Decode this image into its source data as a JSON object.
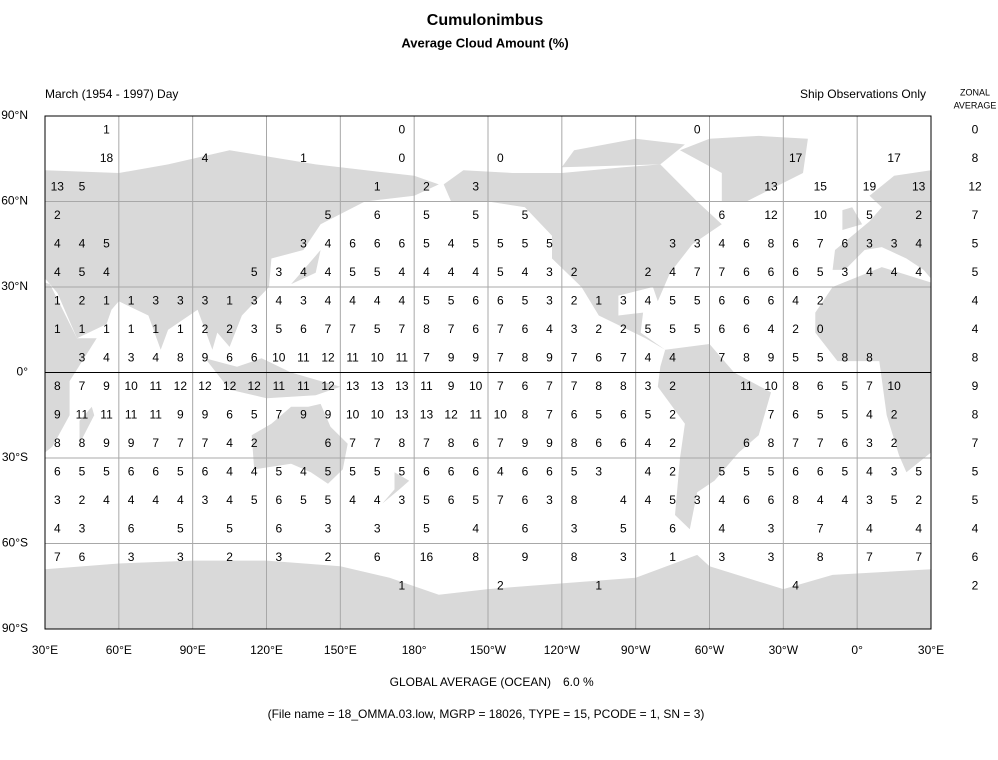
{
  "title": "Cumulonimbus",
  "subtitle": "Average Cloud Amount (%)",
  "period": "March (1954 - 1997) Day",
  "source": "Ship Observations Only",
  "zonal_header": [
    "ZONAL",
    "AVERAGE"
  ],
  "lat_labels": [
    "90°N",
    "60°N",
    "30°N",
    "0°",
    "30°S",
    "60°S",
    "90°S"
  ],
  "lon_labels": [
    "30°E",
    "60°E",
    "90°E",
    "120°E",
    "150°E",
    "180°",
    "150°W",
    "120°W",
    "90°W",
    "60°W",
    "30°W",
    "0°",
    "30°E"
  ],
  "grid": [
    [
      null,
      null,
      1,
      null,
      null,
      null,
      null,
      null,
      null,
      null,
      null,
      null,
      null,
      null,
      0,
      null,
      null,
      null,
      null,
      null,
      null,
      null,
      null,
      null,
      null,
      null,
      0,
      null,
      null,
      null,
      null,
      null,
      null,
      null,
      null,
      null
    ],
    [
      null,
      null,
      18,
      null,
      null,
      null,
      4,
      null,
      null,
      null,
      1,
      null,
      null,
      null,
      0,
      null,
      null,
      null,
      0,
      null,
      null,
      null,
      null,
      null,
      null,
      null,
      null,
      null,
      null,
      null,
      17,
      null,
      null,
      null,
      17,
      null
    ],
    [
      13,
      5,
      null,
      null,
      null,
      null,
      null,
      null,
      null,
      null,
      null,
      null,
      null,
      1,
      null,
      2,
      null,
      3,
      null,
      null,
      null,
      null,
      null,
      null,
      null,
      null,
      null,
      null,
      null,
      13,
      null,
      15,
      null,
      19,
      null,
      13
    ],
    [
      2,
      null,
      null,
      null,
      null,
      null,
      null,
      null,
      null,
      null,
      null,
      5,
      null,
      6,
      null,
      5,
      null,
      5,
      null,
      5,
      null,
      null,
      null,
      null,
      null,
      null,
      null,
      6,
      null,
      12,
      null,
      10,
      null,
      5,
      null,
      2
    ],
    [
      4,
      4,
      5,
      null,
      null,
      null,
      null,
      null,
      null,
      null,
      3,
      4,
      6,
      6,
      6,
      5,
      4,
      5,
      5,
      5,
      5,
      null,
      null,
      null,
      null,
      3,
      3,
      4,
      6,
      8,
      6,
      7,
      6,
      3,
      3,
      4
    ],
    [
      4,
      5,
      4,
      null,
      null,
      null,
      null,
      null,
      5,
      3,
      4,
      4,
      5,
      5,
      4,
      4,
      4,
      4,
      5,
      4,
      3,
      2,
      null,
      null,
      2,
      4,
      7,
      7,
      6,
      6,
      6,
      5,
      3,
      4,
      4,
      4
    ],
    [
      1,
      2,
      1,
      1,
      3,
      3,
      3,
      1,
      3,
      4,
      3,
      4,
      4,
      4,
      4,
      5,
      5,
      6,
      6,
      5,
      3,
      2,
      1,
      3,
      4,
      5,
      5,
      6,
      6,
      6,
      4,
      2,
      null,
      null,
      null,
      null
    ],
    [
      1,
      1,
      1,
      1,
      1,
      1,
      2,
      2,
      3,
      5,
      6,
      7,
      7,
      5,
      7,
      8,
      7,
      6,
      7,
      6,
      4,
      3,
      2,
      2,
      5,
      5,
      5,
      6,
      6,
      4,
      2,
      0,
      null,
      null,
      null,
      null
    ],
    [
      null,
      3,
      4,
      3,
      4,
      8,
      9,
      6,
      6,
      10,
      11,
      12,
      11,
      10,
      11,
      7,
      9,
      9,
      7,
      8,
      9,
      7,
      6,
      7,
      4,
      4,
      null,
      7,
      8,
      9,
      5,
      5,
      8,
      8,
      null,
      null
    ],
    [
      8,
      7,
      9,
      10,
      11,
      12,
      12,
      12,
      12,
      11,
      11,
      12,
      13,
      13,
      13,
      11,
      9,
      10,
      7,
      6,
      7,
      7,
      8,
      8,
      3,
      2,
      null,
      null,
      11,
      10,
      8,
      6,
      5,
      7,
      10,
      null
    ],
    [
      9,
      11,
      11,
      11,
      11,
      9,
      9,
      6,
      5,
      7,
      9,
      9,
      10,
      10,
      13,
      13,
      12,
      11,
      10,
      8,
      7,
      6,
      5,
      6,
      5,
      2,
      null,
      null,
      null,
      7,
      6,
      5,
      5,
      4,
      2,
      null
    ],
    [
      8,
      8,
      9,
      9,
      7,
      7,
      7,
      4,
      2,
      null,
      null,
      6,
      7,
      7,
      8,
      7,
      8,
      6,
      7,
      9,
      9,
      8,
      6,
      6,
      4,
      2,
      null,
      null,
      6,
      8,
      7,
      7,
      6,
      3,
      2,
      null
    ],
    [
      6,
      5,
      5,
      6,
      6,
      5,
      6,
      4,
      4,
      5,
      4,
      5,
      5,
      5,
      5,
      6,
      6,
      6,
      4,
      6,
      6,
      5,
      3,
      null,
      4,
      2,
      null,
      5,
      5,
      5,
      6,
      6,
      5,
      4,
      3,
      5
    ],
    [
      3,
      2,
      4,
      4,
      4,
      4,
      3,
      4,
      5,
      6,
      5,
      5,
      4,
      4,
      3,
      5,
      6,
      5,
      7,
      6,
      3,
      8,
      null,
      4,
      4,
      5,
      3,
      4,
      6,
      6,
      8,
      4,
      4,
      3,
      5,
      2
    ],
    [
      4,
      3,
      null,
      6,
      null,
      5,
      null,
      5,
      null,
      6,
      null,
      3,
      null,
      3,
      null,
      5,
      null,
      4,
      null,
      6,
      null,
      3,
      null,
      5,
      null,
      6,
      null,
      4,
      null,
      3,
      null,
      7,
      null,
      4,
      null,
      4
    ],
    [
      7,
      6,
      null,
      3,
      null,
      3,
      null,
      2,
      null,
      3,
      null,
      2,
      null,
      6,
      null,
      16,
      null,
      8,
      null,
      9,
      null,
      8,
      null,
      3,
      null,
      1,
      null,
      3,
      null,
      3,
      null,
      8,
      null,
      7,
      null,
      7
    ],
    [
      null,
      null,
      null,
      null,
      null,
      null,
      null,
      null,
      null,
      null,
      null,
      null,
      null,
      null,
      1,
      null,
      null,
      null,
      2,
      null,
      null,
      null,
      1,
      null,
      null,
      null,
      null,
      null,
      null,
      null,
      4,
      null,
      null,
      null,
      null,
      null
    ]
  ],
  "zonal_average": [
    0,
    8,
    12,
    7,
    5,
    5,
    4,
    4,
    8,
    9,
    8,
    7,
    5,
    5,
    4,
    6,
    2
  ],
  "global_label": "GLOBAL AVERAGE (OCEAN)",
  "global_average": "6.0 %",
  "footer": "(File name = 18_OMMA.03.low, MGRP = 18026, TYPE = 15, PCODE = 1, SN = 3)"
}
